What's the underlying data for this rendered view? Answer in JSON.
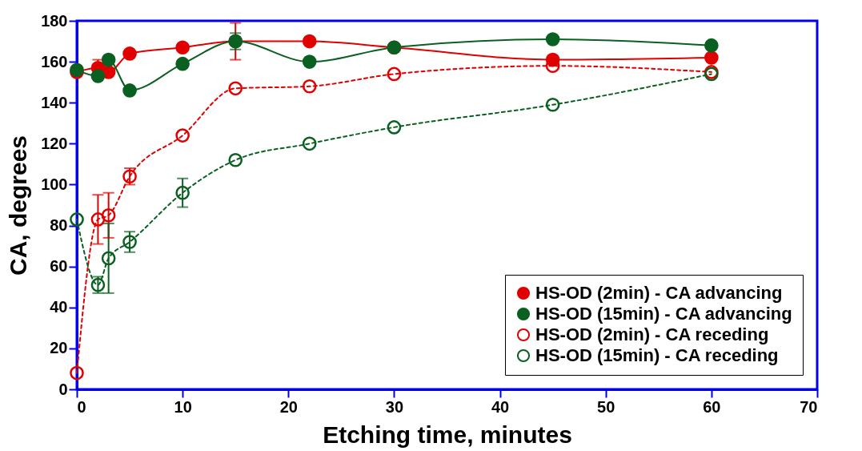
{
  "chart_data": {
    "type": "line",
    "xlabel": "Etching time, minutes",
    "ylabel": "CA, degrees",
    "xlim": [
      0,
      70
    ],
    "xticks": [
      0,
      10,
      20,
      30,
      40,
      50,
      60,
      70
    ],
    "ylim": [
      0,
      180
    ],
    "yticks": [
      0,
      20,
      40,
      60,
      80,
      100,
      120,
      140,
      160,
      180
    ],
    "x": [
      0,
      2,
      3,
      5,
      10,
      15,
      22,
      30,
      45,
      60
    ],
    "grid": false,
    "legend": "bottom right",
    "marker": "circle",
    "series": [
      {
        "name": "HS-OD (2min) - CA advancing",
        "color": "#e00000",
        "line_style": "solid",
        "values": [
          155,
          157,
          155,
          164,
          167,
          170,
          170,
          167,
          161,
          162
        ],
        "errors": [
          null,
          4,
          null,
          null,
          null,
          9,
          null,
          null,
          null,
          null
        ]
      },
      {
        "name": "HS-OD (15min) - CA advancing",
        "color": "#0a6020",
        "line_style": "solid",
        "values": [
          156,
          153,
          161,
          146,
          159,
          170,
          160,
          167,
          171,
          168
        ],
        "errors": [
          null,
          null,
          null,
          null,
          null,
          4,
          null,
          null,
          null,
          null
        ]
      },
      {
        "name": "HS-OD (2min) - CA receding",
        "color": "#e00000",
        "line_style": "dashed",
        "values": [
          8,
          83,
          85,
          104,
          124,
          147,
          148,
          154,
          158,
          155
        ],
        "errors": [
          null,
          12,
          11,
          4,
          null,
          null,
          null,
          null,
          null,
          null
        ]
      },
      {
        "name": "HS-OD (15min) - CA receding",
        "color": "#0a6020",
        "line_style": "dashed",
        "values": [
          83,
          51,
          64,
          72,
          96,
          112,
          120,
          128,
          139,
          154
        ],
        "errors": [
          null,
          4,
          17,
          5,
          7,
          null,
          null,
          null,
          null,
          null
        ]
      }
    ]
  }
}
